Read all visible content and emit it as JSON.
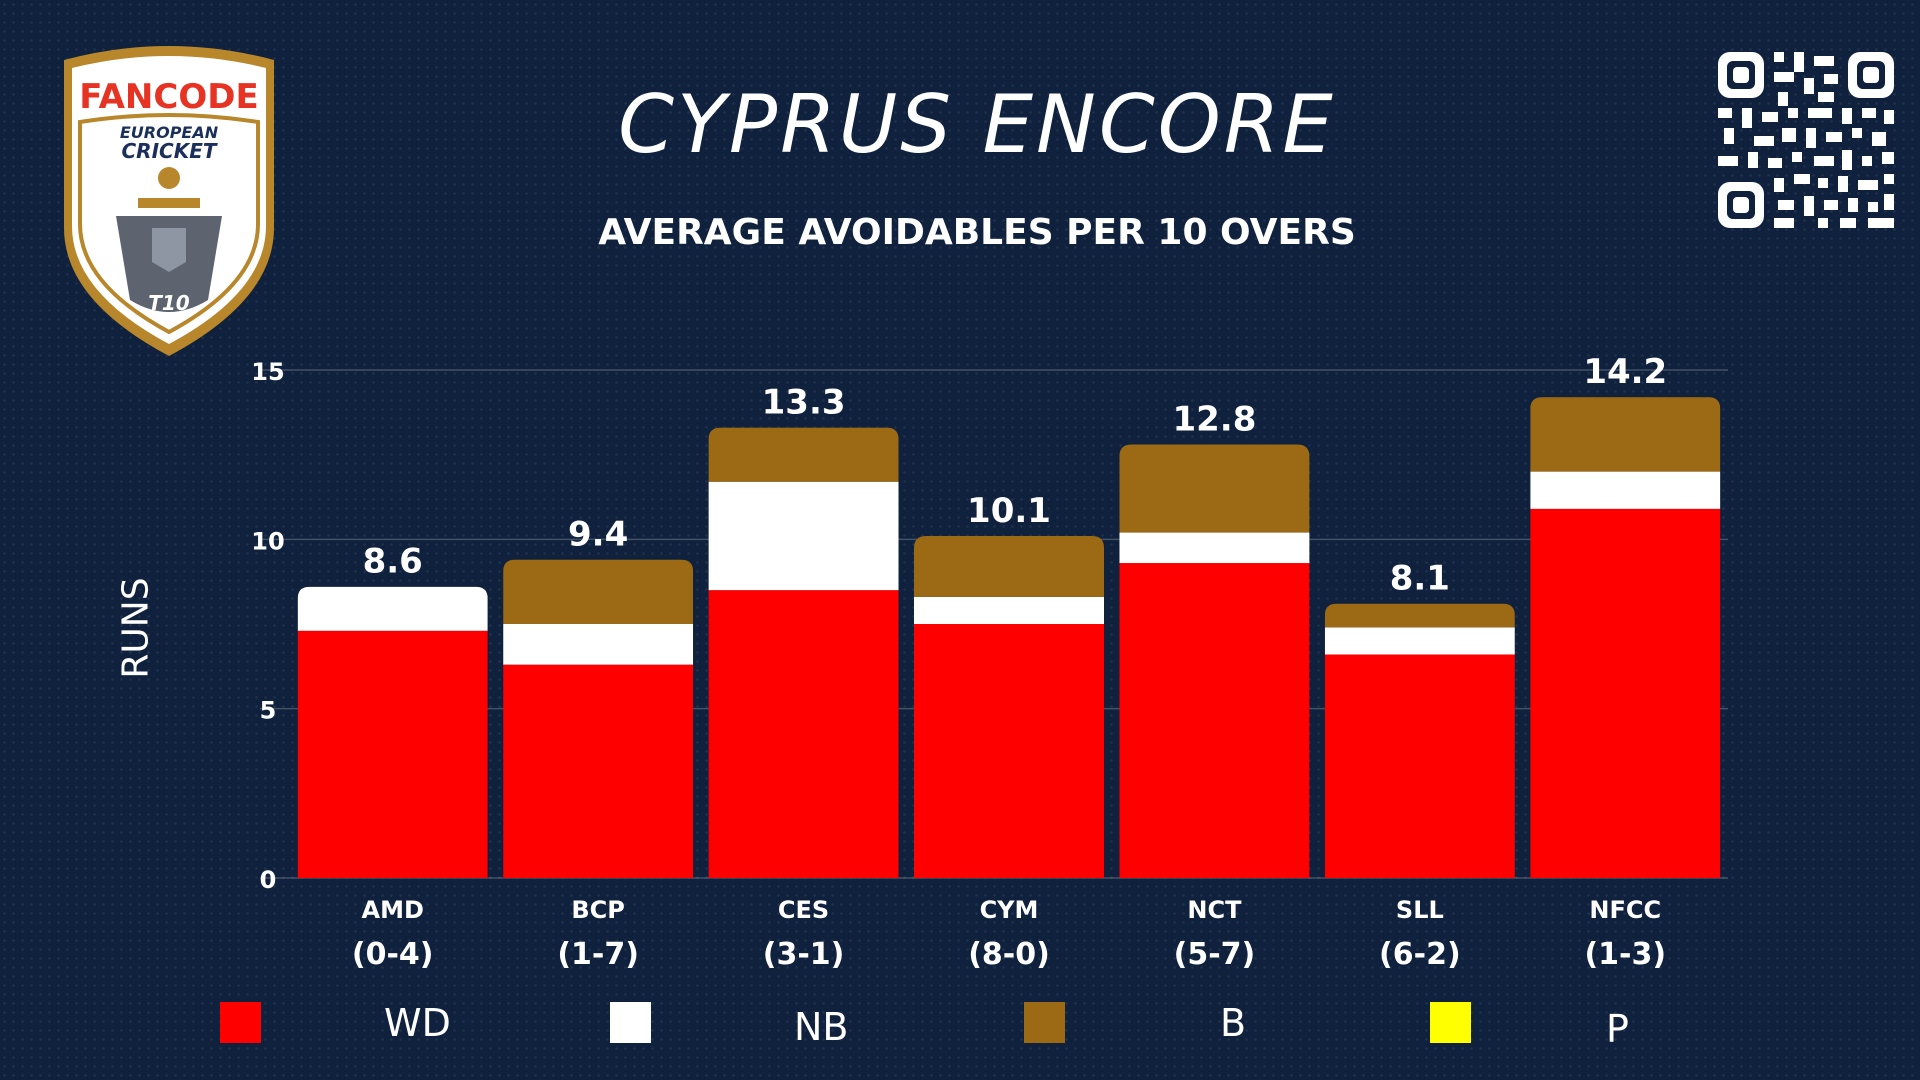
{
  "header": {
    "title": "CYPRUS ENCORE",
    "subtitle": "AVERAGE AVOIDABLES PER 10 OVERS"
  },
  "logo": {
    "brand": "FANCODE",
    "line1": "EUROPEAN",
    "line2": "CRICKET",
    "badge": "T10"
  },
  "colors": {
    "background": "#0f213d",
    "WD": "#ff0000",
    "NB": "#ffffff",
    "B": "#9c6a14",
    "P": "#ffff00"
  },
  "chart_data": {
    "type": "bar",
    "stacked": true,
    "title": "AVERAGE AVOIDABLES PER 10 OVERS",
    "xlabel": "",
    "ylabel": "RUNS",
    "ylim": [
      0,
      15
    ],
    "yticks": [
      0,
      5,
      10,
      15
    ],
    "grid": true,
    "legend_position": "bottom",
    "categories": [
      "AMD",
      "BCP",
      "CES",
      "CYM",
      "NCT",
      "SLL",
      "NFCC"
    ],
    "records": [
      "(0-4)",
      "(1-7)",
      "(3-1)",
      "(8-0)",
      "(5-7)",
      "(6-2)",
      "(1-3)"
    ],
    "totals": [
      "8.6",
      "9.4",
      "13.3",
      "10.1",
      "12.8",
      "8.1",
      "14.2"
    ],
    "series": [
      {
        "name": "WD",
        "color": "#ff0000",
        "values": [
          7.3,
          6.3,
          8.5,
          7.5,
          9.3,
          6.6,
          10.9
        ]
      },
      {
        "name": "NB",
        "color": "#ffffff",
        "values": [
          1.3,
          1.2,
          3.2,
          0.8,
          0.9,
          0.8,
          1.1
        ]
      },
      {
        "name": "B",
        "color": "#9c6a14",
        "values": [
          0.0,
          1.9,
          1.6,
          1.8,
          2.6,
          0.7,
          2.2
        ]
      },
      {
        "name": "P",
        "color": "#ffff00",
        "values": [
          0.0,
          0.0,
          0.0,
          0.0,
          0.0,
          0.0,
          0.0
        ]
      }
    ]
  }
}
